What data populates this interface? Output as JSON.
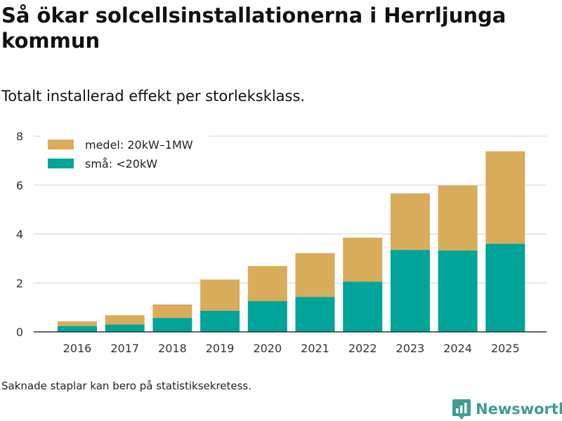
{
  "title": "Så ökar solcellsinstallationerna i Herrljunga kommun",
  "subtitle": "Totalt installerad effekt per storleksklass.",
  "footnote": "Saknade staplar kan bero på statistiksekretess.",
  "brand": {
    "name": "Newsworthy",
    "color": "#3f9e8f"
  },
  "chart_data": {
    "type": "bar",
    "stacked": true,
    "categories": [
      "2016",
      "2017",
      "2018",
      "2019",
      "2020",
      "2021",
      "2022",
      "2023",
      "2024",
      "2025"
    ],
    "series": [
      {
        "name": "små: <20kW",
        "color": "#00a499",
        "values": [
          0.24,
          0.3,
          0.57,
          0.86,
          1.26,
          1.43,
          2.05,
          3.35,
          3.33,
          3.6
        ]
      },
      {
        "name": "medel: 20kW–1MW",
        "color": "#d8ac5a",
        "values": [
          0.19,
          0.38,
          0.55,
          1.28,
          1.43,
          1.79,
          1.8,
          2.31,
          2.65,
          3.78
        ]
      }
    ],
    "legend_order": [
      "medel: 20kW–1MW",
      "små: <20kW"
    ],
    "legend_position": "top-left",
    "ylim": [
      0,
      8
    ],
    "yticks": [
      0,
      2,
      4,
      6,
      8
    ],
    "grid": true,
    "xlabel": "",
    "ylabel": ""
  }
}
